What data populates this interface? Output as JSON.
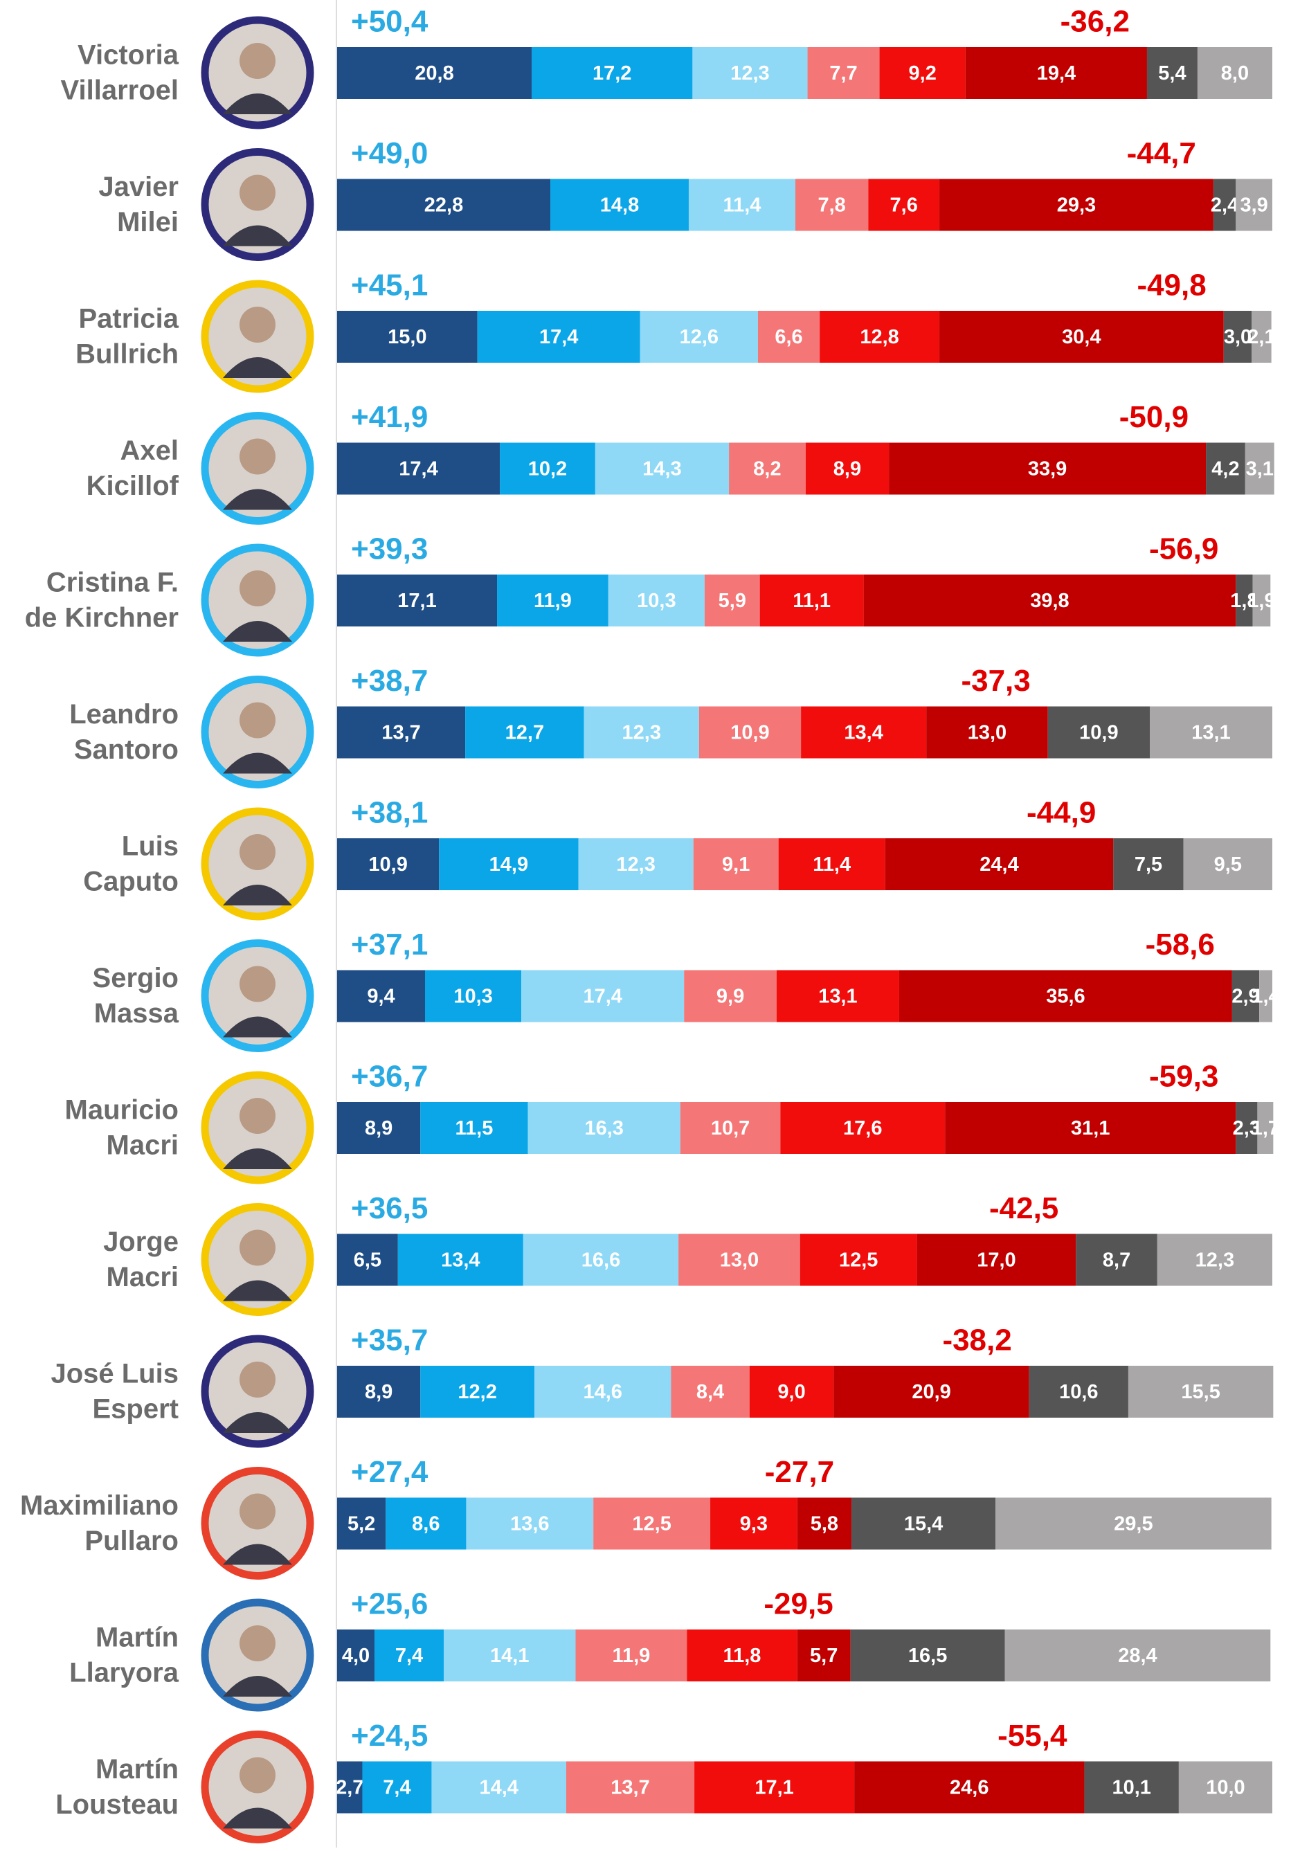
{
  "chart_data": {
    "type": "stacked-bar",
    "categories": [
      [
        "Victoria",
        "Villarroel"
      ],
      [
        "Javier",
        "Milei"
      ],
      [
        "Patricia",
        "Bullrich"
      ],
      [
        "Axel",
        "Kicillof"
      ],
      [
        "Cristina F.",
        "de Kirchner"
      ],
      [
        "Leandro",
        "Santoro"
      ],
      [
        "Luis",
        "Caputo"
      ],
      [
        "Sergio",
        "Massa"
      ],
      [
        "Mauricio",
        "Macri"
      ],
      [
        "Jorge",
        "Macri"
      ],
      [
        "José Luis",
        "Espert"
      ],
      [
        "Maximiliano",
        "Pullaro"
      ],
      [
        "Martín",
        "Llaryora"
      ],
      [
        "Martín",
        "Lousteau"
      ]
    ],
    "xlim": [
      0,
      100
    ],
    "series": [
      {
        "color": "#1f4e87",
        "values": [
          20.8,
          22.8,
          15.0,
          17.4,
          17.1,
          13.7,
          10.9,
          9.4,
          8.9,
          6.5,
          8.9,
          5.2,
          4.0,
          2.7
        ],
        "value_labels": [
          "20,8",
          "22,8",
          "15,0",
          "17,4",
          "17,1",
          "13,7",
          "10,9",
          "9,4",
          "8,9",
          "6,5",
          "8,9",
          "5,2",
          "4,0",
          "2,7"
        ]
      },
      {
        "color": "#0ba6e8",
        "values": [
          17.2,
          14.8,
          17.4,
          10.2,
          11.9,
          12.7,
          14.9,
          10.3,
          11.5,
          13.4,
          12.2,
          8.6,
          7.4,
          7.4
        ],
        "value_labels": [
          "17,2",
          "14,8",
          "17,4",
          "10,2",
          "11,9",
          "12,7",
          "14,9",
          "10,3",
          "11,5",
          "13,4",
          "12,2",
          "8,6",
          "7,4",
          "7,4"
        ]
      },
      {
        "color": "#8fd9f7",
        "values": [
          12.3,
          11.4,
          12.6,
          14.3,
          10.3,
          12.3,
          12.3,
          17.4,
          16.3,
          16.6,
          14.6,
          13.6,
          14.1,
          14.4
        ],
        "value_labels": [
          "12,3",
          "11,4",
          "12,6",
          "14,3",
          "10,3",
          "12,3",
          "12,3",
          "17,4",
          "16,3",
          "16,6",
          "14,6",
          "13,6",
          "14,1",
          "14,4"
        ]
      },
      {
        "color": "#f57676",
        "values": [
          7.7,
          7.8,
          6.6,
          8.2,
          5.9,
          10.9,
          9.1,
          9.9,
          10.7,
          13.0,
          8.4,
          12.5,
          11.9,
          13.7
        ],
        "value_labels": [
          "7,7",
          "7,8",
          "6,6",
          "8,2",
          "5,9",
          "10,9",
          "9,1",
          "9,9",
          "10,7",
          "13,0",
          "8,4",
          "12,5",
          "11,9",
          "13,7"
        ]
      },
      {
        "color": "#f20d0d",
        "values": [
          9.2,
          7.6,
          12.8,
          8.9,
          11.1,
          13.4,
          11.4,
          13.1,
          17.6,
          12.5,
          9.0,
          9.3,
          11.8,
          17.1
        ],
        "value_labels": [
          "9,2",
          "7,6",
          "12,8",
          "8,9",
          "11,1",
          "13,4",
          "11,4",
          "13,1",
          "17,6",
          "12,5",
          "9,0",
          "9,3",
          "11,8",
          "17,1"
        ]
      },
      {
        "color": "#c00000",
        "values": [
          19.4,
          29.3,
          30.4,
          33.9,
          39.8,
          13.0,
          24.4,
          35.6,
          31.1,
          17.0,
          20.9,
          5.8,
          5.7,
          24.6
        ],
        "value_labels": [
          "19,4",
          "29,3",
          "30,4",
          "33,9",
          "39,8",
          "13,0",
          "24,4",
          "35,6",
          "31,1",
          "17,0",
          "20,9",
          "5,8",
          "5,7",
          "24,6"
        ]
      },
      {
        "color": "#555555",
        "values": [
          5.4,
          2.4,
          3.0,
          4.2,
          1.8,
          10.9,
          7.5,
          2.9,
          2.3,
          8.7,
          10.6,
          15.4,
          16.5,
          10.1
        ],
        "value_labels": [
          "5,4",
          "2,4",
          "3,0",
          "4,2",
          "1,8",
          "10,9",
          "7,5",
          "2,9",
          "2,3",
          "8,7",
          "10,6",
          "15,4",
          "16,5",
          "10,1"
        ]
      },
      {
        "color": "#a9a7a7",
        "values": [
          8.0,
          3.9,
          2.1,
          3.1,
          1.9,
          13.1,
          9.5,
          1.4,
          1.7,
          12.3,
          15.5,
          29.5,
          28.4,
          10.0
        ],
        "value_labels": [
          "8,0",
          "3,9",
          "2,1",
          "3,1",
          "1,9",
          "13,1",
          "9,5",
          "1,4",
          "1,7",
          "12,3",
          "15,5",
          "29,5",
          "28,4",
          "10,0"
        ]
      }
    ],
    "positive_totals": {
      "color": "#2aaae2",
      "values": [
        50.4,
        49.0,
        45.1,
        41.9,
        39.3,
        38.7,
        38.1,
        37.1,
        36.7,
        36.5,
        35.7,
        27.4,
        25.6,
        24.5
      ],
      "value_labels": [
        "+50,4",
        "+49,0",
        "+45,1",
        "+41,9",
        "+39,3",
        "+38,7",
        "+38,1",
        "+37,1",
        "+36,7",
        "+36,5",
        "+35,7",
        "+27,4",
        "+25,6",
        "+24,5"
      ]
    },
    "negative_totals": {
      "color": "#e00000",
      "values": [
        -36.2,
        -44.7,
        -49.8,
        -50.9,
        -56.9,
        -37.3,
        -44.9,
        -58.6,
        -59.3,
        -42.5,
        -38.2,
        -27.7,
        -29.5,
        -55.4
      ],
      "value_labels": [
        "-36,2",
        "-44,7",
        "-49,8",
        "-50,9",
        "-56,9",
        "-37,3",
        "-44,9",
        "-58,6",
        "-59,3",
        "-42,5",
        "-38,2",
        "-27,7",
        "-29,5",
        "-55,4"
      ]
    }
  }
}
